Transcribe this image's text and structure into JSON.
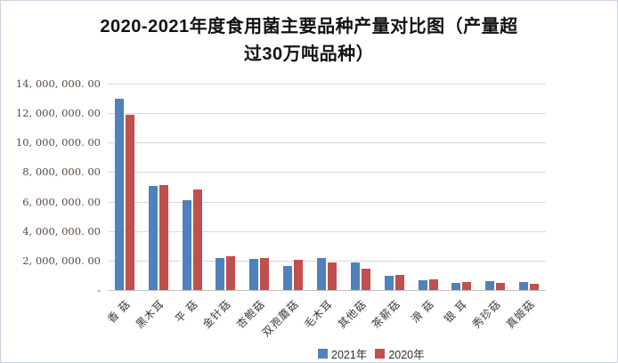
{
  "title": {
    "line1": "2020-2021年度食用菌主要品种产量对比图（产量超",
    "line2": "过30万吨品种）",
    "full": "2020-2021年度食用菌主要品种产量对比图（产量超过30万吨品种）"
  },
  "chart_data": {
    "type": "bar",
    "categories": [
      "香 菇",
      "黑木耳",
      "平 菇",
      "金针菇",
      "杏鲍菇",
      "双孢蘑菇",
      "毛木耳",
      "其他菇",
      "茶薪菇",
      "滑 菇",
      "银 耳",
      "秀珍菇",
      "真姬菇"
    ],
    "series": [
      {
        "name": "2021年",
        "color": "#4F81BD",
        "values": [
          13000000,
          7050000,
          6100000,
          2150000,
          2100000,
          1600000,
          2200000,
          1850000,
          950000,
          650000,
          510000,
          610000,
          540000
        ]
      },
      {
        "name": "2020年",
        "color": "#C0504D",
        "values": [
          11900000,
          7100000,
          6800000,
          2300000,
          2150000,
          2050000,
          1850000,
          1450000,
          1000000,
          700000,
          520000,
          470000,
          420000
        ]
      }
    ],
    "ylim": [
      0,
      14000000
    ],
    "ytick_step": 2000000,
    "ytick_labels": [
      "-",
      "2, 000, 000. 00",
      "4, 000, 000. 00",
      "6, 000, 000. 00",
      "8, 000, 000. 00",
      "10, 000, 000. 00",
      "12, 000, 000. 00",
      "14, 000, 000. 00"
    ],
    "grid": true,
    "legend_position": "bottom",
    "xlabel": "",
    "ylabel": ""
  },
  "colors": {
    "grid": "#d9d9d9",
    "series_2021": "#4F81BD",
    "series_2020": "#C0504D",
    "y_label_text": "#5b4a3f"
  }
}
